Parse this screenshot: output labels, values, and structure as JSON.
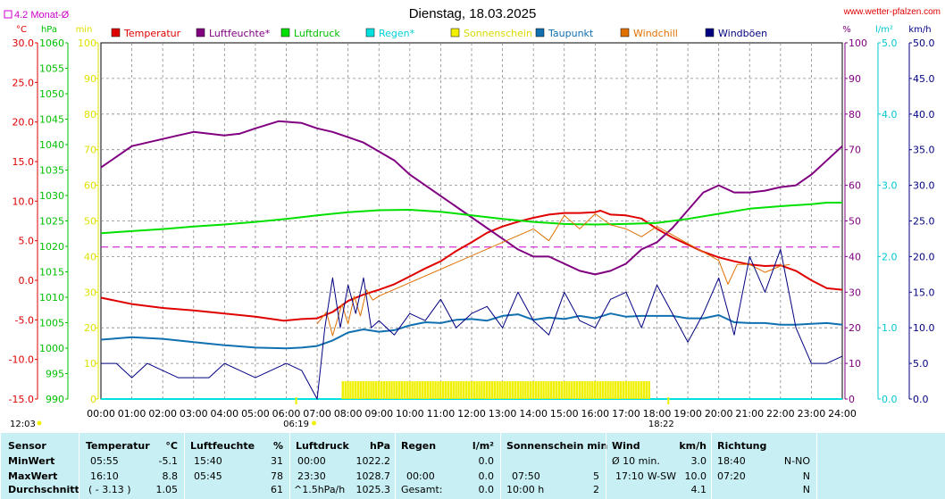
{
  "header": {
    "title": "Dienstag, 18.03.2025",
    "website": "www.wetter-pfalzen.com",
    "monthly_avg_label": "4.2 Monat-Ø"
  },
  "left_axis_units": [
    "°C",
    "hPa",
    "min"
  ],
  "right_axis_units": [
    "%",
    "l/m²",
    "km/h"
  ],
  "legend": [
    "Temperatur",
    "Luftfeuchte*",
    "Luftdruck",
    "Regen*",
    "Sonnenschein",
    "Taupunkt",
    "Windchill",
    "Windböen"
  ],
  "x_ticks": [
    "00:00",
    "01:00",
    "02:00",
    "03:00",
    "04:00",
    "05:00",
    "06:00",
    "07:00",
    "08:00",
    "09:00",
    "10:00",
    "11:00",
    "12:00",
    "13:00",
    "14:00",
    "15:00",
    "16:00",
    "17:00",
    "18:00",
    "19:00",
    "20:00",
    "21:00",
    "22:00",
    "23:00",
    "24:00"
  ],
  "markers": {
    "sunrise": "06:19",
    "sunset": "18:22",
    "left_time": "12:03"
  },
  "axes": {
    "temp": {
      "ticks": [
        "30.0",
        "25.0",
        "20.0",
        "15.0",
        "10.0",
        "5.0",
        "0.0",
        "-5.0",
        "-10.0",
        "-15.0"
      ]
    },
    "pressure": {
      "ticks": [
        "1060",
        "1055",
        "1050",
        "1045",
        "1040",
        "1035",
        "1030",
        "1025",
        "1020",
        "1015",
        "1010",
        "1005",
        "1000",
        "995",
        "990"
      ]
    },
    "minutes": {
      "ticks": [
        "100",
        "90",
        "80",
        "70",
        "60",
        "50",
        "40",
        "30",
        "20",
        "10",
        "0"
      ]
    },
    "humidity": {
      "ticks": [
        "100",
        "90",
        "80",
        "70",
        "60",
        "50",
        "40",
        "30",
        "20",
        "10",
        "0"
      ]
    },
    "rain": {
      "ticks": [
        "5.0",
        "4.0",
        "3.0",
        "2.0",
        "1.0",
        "0.0"
      ]
    },
    "wind": {
      "ticks": [
        "50.0",
        "45.0",
        "40.0",
        "35.0",
        "30.0",
        "25.0",
        "20.0",
        "15.0",
        "10.0",
        "5.0",
        "0.0"
      ]
    }
  },
  "colors": {
    "temperature": "#e00000",
    "humidity": "#800080",
    "pressure": "#00e000",
    "rain": "#00e0e0",
    "sunshine": "#f0f000",
    "dewpoint": "#1070b0",
    "windchill": "#e07000",
    "gusts": "#000080",
    "monthly_avg": "#cc00cc"
  },
  "chart_data": {
    "type": "line",
    "title": "Dienstag, 18.03.2025",
    "x_unit": "hour",
    "xlim": [
      0,
      24
    ],
    "monthly_avg_temp": 4.2,
    "series": [
      {
        "name": "Temperatur",
        "axis": "°C",
        "ylim": [
          -15,
          30
        ],
        "x": [
          0,
          1,
          2,
          3,
          4,
          5,
          5.92,
          6.5,
          7,
          7.5,
          8,
          8.5,
          9,
          9.5,
          10,
          10.5,
          11,
          11.5,
          12,
          12.5,
          13,
          13.5,
          14,
          14.5,
          15,
          15.5,
          16,
          16.17,
          16.5,
          17,
          17.5,
          18,
          18.5,
          19,
          19.5,
          20,
          20.5,
          21,
          21.5,
          22,
          22.5,
          23,
          23.5,
          24
        ],
        "y": [
          -2.2,
          -3.0,
          -3.5,
          -3.8,
          -4.2,
          -4.6,
          -5.1,
          -4.9,
          -4.8,
          -4.0,
          -2.6,
          -1.8,
          -1.2,
          -0.5,
          0.5,
          1.5,
          2.4,
          3.7,
          4.8,
          6.0,
          6.8,
          7.4,
          7.9,
          8.3,
          8.5,
          8.5,
          8.6,
          8.8,
          8.3,
          8.2,
          7.8,
          6.5,
          5.4,
          4.5,
          3.6,
          2.9,
          2.4,
          2.0,
          1.8,
          1.9,
          1.2,
          0.0,
          -1.0,
          -1.2
        ]
      },
      {
        "name": "Luftfeuchte*",
        "axis": "%",
        "ylim": [
          0,
          100
        ],
        "x": [
          0,
          0.5,
          1,
          1.5,
          2,
          2.5,
          3,
          3.5,
          4,
          4.5,
          5,
          5.75,
          6.5,
          7,
          7.5,
          8,
          8.5,
          9,
          9.5,
          10,
          10.5,
          11,
          11.5,
          12,
          12.5,
          13,
          13.5,
          14,
          14.5,
          15,
          15.5,
          16,
          16.5,
          17,
          17.5,
          18,
          18.5,
          19,
          19.5,
          20,
          20.5,
          21,
          21.5,
          22,
          22.5,
          23,
          23.5,
          24
        ],
        "y": [
          65,
          68,
          71,
          72,
          73,
          74,
          75,
          74.5,
          74,
          74.5,
          76,
          78,
          77.5,
          76,
          75,
          73.5,
          72,
          69.5,
          67,
          63,
          60,
          57,
          54,
          51,
          48,
          45,
          42,
          40,
          40,
          38,
          36,
          35,
          36,
          38,
          42,
          44,
          48,
          53,
          58,
          60,
          58,
          58,
          58.5,
          59.5,
          60,
          63,
          67,
          71
        ]
      },
      {
        "name": "Luftdruck",
        "axis": "hPa",
        "ylim": [
          990,
          1060
        ],
        "x": [
          0,
          1,
          2,
          3,
          4,
          5,
          6,
          7,
          8,
          9,
          10,
          11,
          12,
          13,
          14,
          15,
          16,
          17,
          18,
          19,
          20,
          21,
          22,
          23,
          23.5,
          24
        ],
        "y": [
          1022.6,
          1023,
          1023.4,
          1023.9,
          1024.3,
          1024.8,
          1025.4,
          1026.1,
          1026.7,
          1027.1,
          1027.2,
          1026.8,
          1026.1,
          1025.4,
          1024.8,
          1024.4,
          1024.3,
          1024.4,
          1024.6,
          1025.4,
          1026.4,
          1027.4,
          1027.9,
          1028.3,
          1028.6,
          1028.6
        ]
      },
      {
        "name": "Regen*",
        "axis": "l/m²",
        "ylim": [
          0,
          5
        ],
        "x": [
          0,
          24
        ],
        "y": [
          0,
          0
        ]
      },
      {
        "name": "Sonnenschein",
        "axis": "min",
        "ylim": [
          0,
          100
        ],
        "x": [
          7.83,
          17.83
        ],
        "y": [
          5,
          5
        ]
      },
      {
        "name": "Taupunkt",
        "axis": "°C",
        "ylim": [
          -15,
          30
        ],
        "x": [
          0,
          1,
          2,
          3,
          4,
          5,
          6,
          6.5,
          7,
          7.5,
          8,
          8.5,
          9,
          9.5,
          10,
          10.5,
          11,
          11.5,
          12,
          12.5,
          13,
          13.5,
          14,
          14.5,
          15,
          15.5,
          16,
          16.5,
          17,
          17.5,
          18,
          18.5,
          19,
          19.5,
          20,
          20.5,
          21,
          21.5,
          22,
          22.5,
          23,
          23.5,
          24
        ],
        "y": [
          -7.5,
          -7.2,
          -7.4,
          -7.8,
          -8.2,
          -8.5,
          -8.6,
          -8.5,
          -8.3,
          -7.6,
          -6.6,
          -6.2,
          -6.5,
          -6.3,
          -5.7,
          -5.3,
          -5.4,
          -5.0,
          -4.9,
          -5.1,
          -4.5,
          -4.3,
          -5.0,
          -4.7,
          -4.9,
          -4.5,
          -4.8,
          -4.2,
          -4.6,
          -4.5,
          -4.5,
          -4.5,
          -4.8,
          -4.8,
          -4.4,
          -5.3,
          -5.4,
          -5.4,
          -5.6,
          -5.6,
          -5.5,
          -5.4,
          -5.6
        ]
      },
      {
        "name": "Windchill",
        "axis": "°C",
        "ylim": [
          -15,
          30
        ],
        "x": [
          7,
          7.3,
          7.5,
          7.8,
          8,
          8.2,
          8.4,
          8.6,
          8.8,
          9,
          14,
          14.5,
          15,
          15.5,
          16,
          16.5,
          17,
          17.5,
          18,
          20,
          20.3,
          20.6,
          21,
          21.5,
          22,
          22.3
        ],
        "y": [
          -5.5,
          -4.0,
          -7.0,
          -3.0,
          -5.5,
          -2.0,
          -4.5,
          -1.2,
          -2.5,
          -2.0,
          6.5,
          5.0,
          8.2,
          6.5,
          8.4,
          7.0,
          6.5,
          5.5,
          6.8,
          2.5,
          -0.5,
          2.0,
          2.0,
          1.0,
          1.8,
          2.0
        ]
      },
      {
        "name": "Windböen",
        "axis": "km/h",
        "ylim": [
          0,
          50
        ],
        "x": [
          0,
          0.5,
          1,
          1.5,
          2,
          2.5,
          3,
          3.5,
          4,
          4.5,
          5,
          5.5,
          6,
          6.5,
          7,
          7.25,
          7.5,
          7.75,
          8,
          8.25,
          8.5,
          8.75,
          9,
          9.5,
          10,
          10.5,
          11,
          11.5,
          12,
          12.5,
          13,
          13.5,
          14,
          14.5,
          15,
          15.5,
          16,
          16.5,
          17,
          17.5,
          18,
          18.5,
          19,
          19.5,
          20,
          20.5,
          21,
          21.5,
          22,
          22.5,
          23,
          23.5,
          24
        ],
        "y": [
          5,
          5,
          3,
          5,
          4,
          3,
          3,
          3,
          5,
          4,
          3,
          4,
          5,
          4,
          0,
          10,
          17,
          10,
          16,
          12,
          17,
          10,
          11,
          9,
          12,
          11,
          14,
          10,
          12,
          13,
          10,
          15,
          11,
          9,
          15,
          11,
          10,
          14,
          15,
          10,
          16,
          12,
          8,
          12,
          17,
          9,
          20,
          15,
          21,
          10,
          5,
          5,
          6
        ]
      }
    ]
  },
  "stats": {
    "labels": {
      "sensor": "Sensor",
      "min": "MinWert",
      "max": "MaxWert",
      "avg": "Durchschnitt"
    },
    "temperature": {
      "title": "Temperatur",
      "unit": "°C",
      "min_time": "05:55",
      "min_val": "-5.1",
      "max_time": "16:10",
      "max_val": "8.8",
      "avg_note": "( - 3.13 )",
      "avg_val": "1.05"
    },
    "humidity": {
      "title": "Luftfeuchte",
      "unit": "%",
      "min_time": "15:40",
      "min_val": "31",
      "max_time": "05:45",
      "max_val": "78",
      "avg_val": "61"
    },
    "pressure": {
      "title": "Luftdruck",
      "unit": "hPa",
      "min_time": "00:00",
      "min_val": "1022.2",
      "max_time": "23:30",
      "max_val": "1028.7",
      "avg_note": "^1.5hPa/h",
      "avg_val": "1025.3"
    },
    "rain": {
      "title": "Regen",
      "unit": "l/m²",
      "max_time": "00:00",
      "max_val": "0.0",
      "min_val": "0.0",
      "avg_note": "Gesamt:",
      "avg_val": "0.0"
    },
    "sunshine": {
      "title": "Sonnenschein min",
      "max_time": "07:50",
      "max_val": "5",
      "avg_note": "10:00 h",
      "avg_val": "2"
    },
    "wind": {
      "title": "Wind",
      "unit": "km/h",
      "min_note": "Ø 10 min.",
      "min_val": "3.0",
      "max_time": "17:10",
      "max_dir": "W-SW",
      "max_val": "10.0",
      "avg_val": "4.1"
    },
    "direction": {
      "title": "Richtung",
      "min_time": "18:40",
      "min_val": "N-NO",
      "max_time": "07:20",
      "max_val": "N",
      "avg_val": "N"
    }
  }
}
